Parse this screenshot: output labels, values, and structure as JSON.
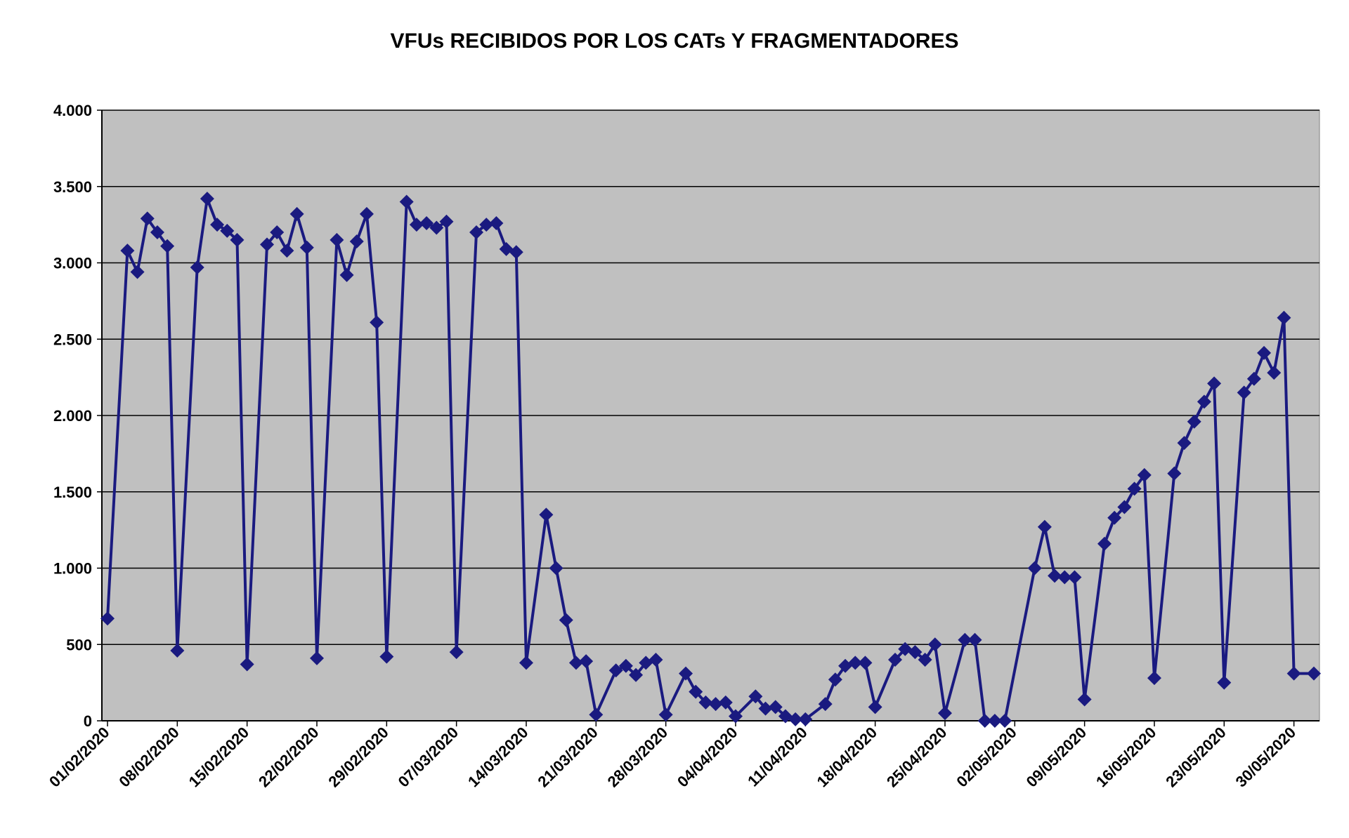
{
  "chart_data": {
    "type": "line",
    "title": "VFUs RECIBIDOS POR LOS CATs Y FRAGMENTADORES",
    "xlabel": "",
    "ylabel": "",
    "ylim": [
      0,
      4000
    ],
    "yticks": [
      0,
      500,
      1000,
      1500,
      2000,
      2500,
      3000,
      3500,
      4000
    ],
    "ytick_labels": [
      "0",
      "500",
      "1.000",
      "1.500",
      "2.000",
      "2.500",
      "3.000",
      "3.500",
      "4.000"
    ],
    "xlim": [
      "2020-02-01",
      "2020-06-01"
    ],
    "xtick_labels": [
      "01/02/2020",
      "08/02/2020",
      "15/02/2020",
      "22/02/2020",
      "29/02/2020",
      "07/03/2020",
      "14/03/2020",
      "21/03/2020",
      "28/03/2020",
      "04/04/2020",
      "11/04/2020",
      "18/04/2020",
      "25/04/2020",
      "02/05/2020",
      "09/05/2020",
      "16/05/2020",
      "23/05/2020",
      "30/05/2020"
    ],
    "grid": "horizontal",
    "legend": "none",
    "colors": {
      "line": "#1a1a80",
      "plot_background": "#c0c0c0",
      "grid": "#000000"
    },
    "series": [
      {
        "x": [
          "2020-02-01",
          "2020-02-03",
          "2020-02-04",
          "2020-02-05",
          "2020-02-06",
          "2020-02-07",
          "2020-02-08",
          "2020-02-10",
          "2020-02-11",
          "2020-02-12",
          "2020-02-13",
          "2020-02-14",
          "2020-02-15",
          "2020-02-17",
          "2020-02-18",
          "2020-02-19",
          "2020-02-20",
          "2020-02-21",
          "2020-02-22",
          "2020-02-24",
          "2020-02-25",
          "2020-02-26",
          "2020-02-27",
          "2020-02-28",
          "2020-02-29",
          "2020-03-02",
          "2020-03-03",
          "2020-03-04",
          "2020-03-05",
          "2020-03-06",
          "2020-03-07",
          "2020-03-09",
          "2020-03-10",
          "2020-03-11",
          "2020-03-12",
          "2020-03-13",
          "2020-03-14",
          "2020-03-16",
          "2020-03-17",
          "2020-03-18",
          "2020-03-19",
          "2020-03-20",
          "2020-03-21",
          "2020-03-23",
          "2020-03-24",
          "2020-03-25",
          "2020-03-26",
          "2020-03-27",
          "2020-03-28",
          "2020-03-30",
          "2020-03-31",
          "2020-04-01",
          "2020-04-02",
          "2020-04-03",
          "2020-04-04",
          "2020-04-06",
          "2020-04-07",
          "2020-04-08",
          "2020-04-09",
          "2020-04-10",
          "2020-04-11",
          "2020-04-13",
          "2020-04-14",
          "2020-04-15",
          "2020-04-16",
          "2020-04-17",
          "2020-04-18",
          "2020-04-20",
          "2020-04-21",
          "2020-04-22",
          "2020-04-23",
          "2020-04-24",
          "2020-04-25",
          "2020-04-27",
          "2020-04-28",
          "2020-04-29",
          "2020-04-30",
          "2020-05-01",
          "2020-05-04",
          "2020-05-05",
          "2020-05-06",
          "2020-05-07",
          "2020-05-08",
          "2020-05-09",
          "2020-05-11",
          "2020-05-12",
          "2020-05-13",
          "2020-05-14",
          "2020-05-15",
          "2020-05-16",
          "2020-05-18",
          "2020-05-19",
          "2020-05-20",
          "2020-05-21",
          "2020-05-22",
          "2020-05-23",
          "2020-05-25",
          "2020-05-26",
          "2020-05-27",
          "2020-05-28",
          "2020-05-29",
          "2020-05-30",
          "2020-06-01"
        ],
        "values": [
          670,
          3080,
          2940,
          3290,
          3200,
          3110,
          460,
          2970,
          3420,
          3250,
          3210,
          3150,
          370,
          3120,
          3200,
          3080,
          3320,
          3100,
          410,
          3150,
          2920,
          3140,
          3320,
          2610,
          420,
          3400,
          3250,
          3260,
          3230,
          3270,
          450,
          3200,
          3250,
          3260,
          3090,
          3070,
          380,
          1350,
          1000,
          660,
          380,
          390,
          40,
          330,
          360,
          300,
          380,
          400,
          40,
          310,
          190,
          120,
          110,
          120,
          30,
          160,
          80,
          90,
          30,
          10,
          10,
          110,
          270,
          360,
          380,
          380,
          90,
          400,
          470,
          450,
          400,
          500,
          50,
          530,
          530,
          0,
          0,
          0,
          1000,
          1270,
          950,
          940,
          940,
          140,
          1160,
          1330,
          1400,
          1520,
          1610,
          280,
          1620,
          1820,
          1960,
          2090,
          2210,
          250,
          2150,
          2240,
          2410,
          2280,
          2640,
          310,
          310
        ]
      }
    ]
  }
}
